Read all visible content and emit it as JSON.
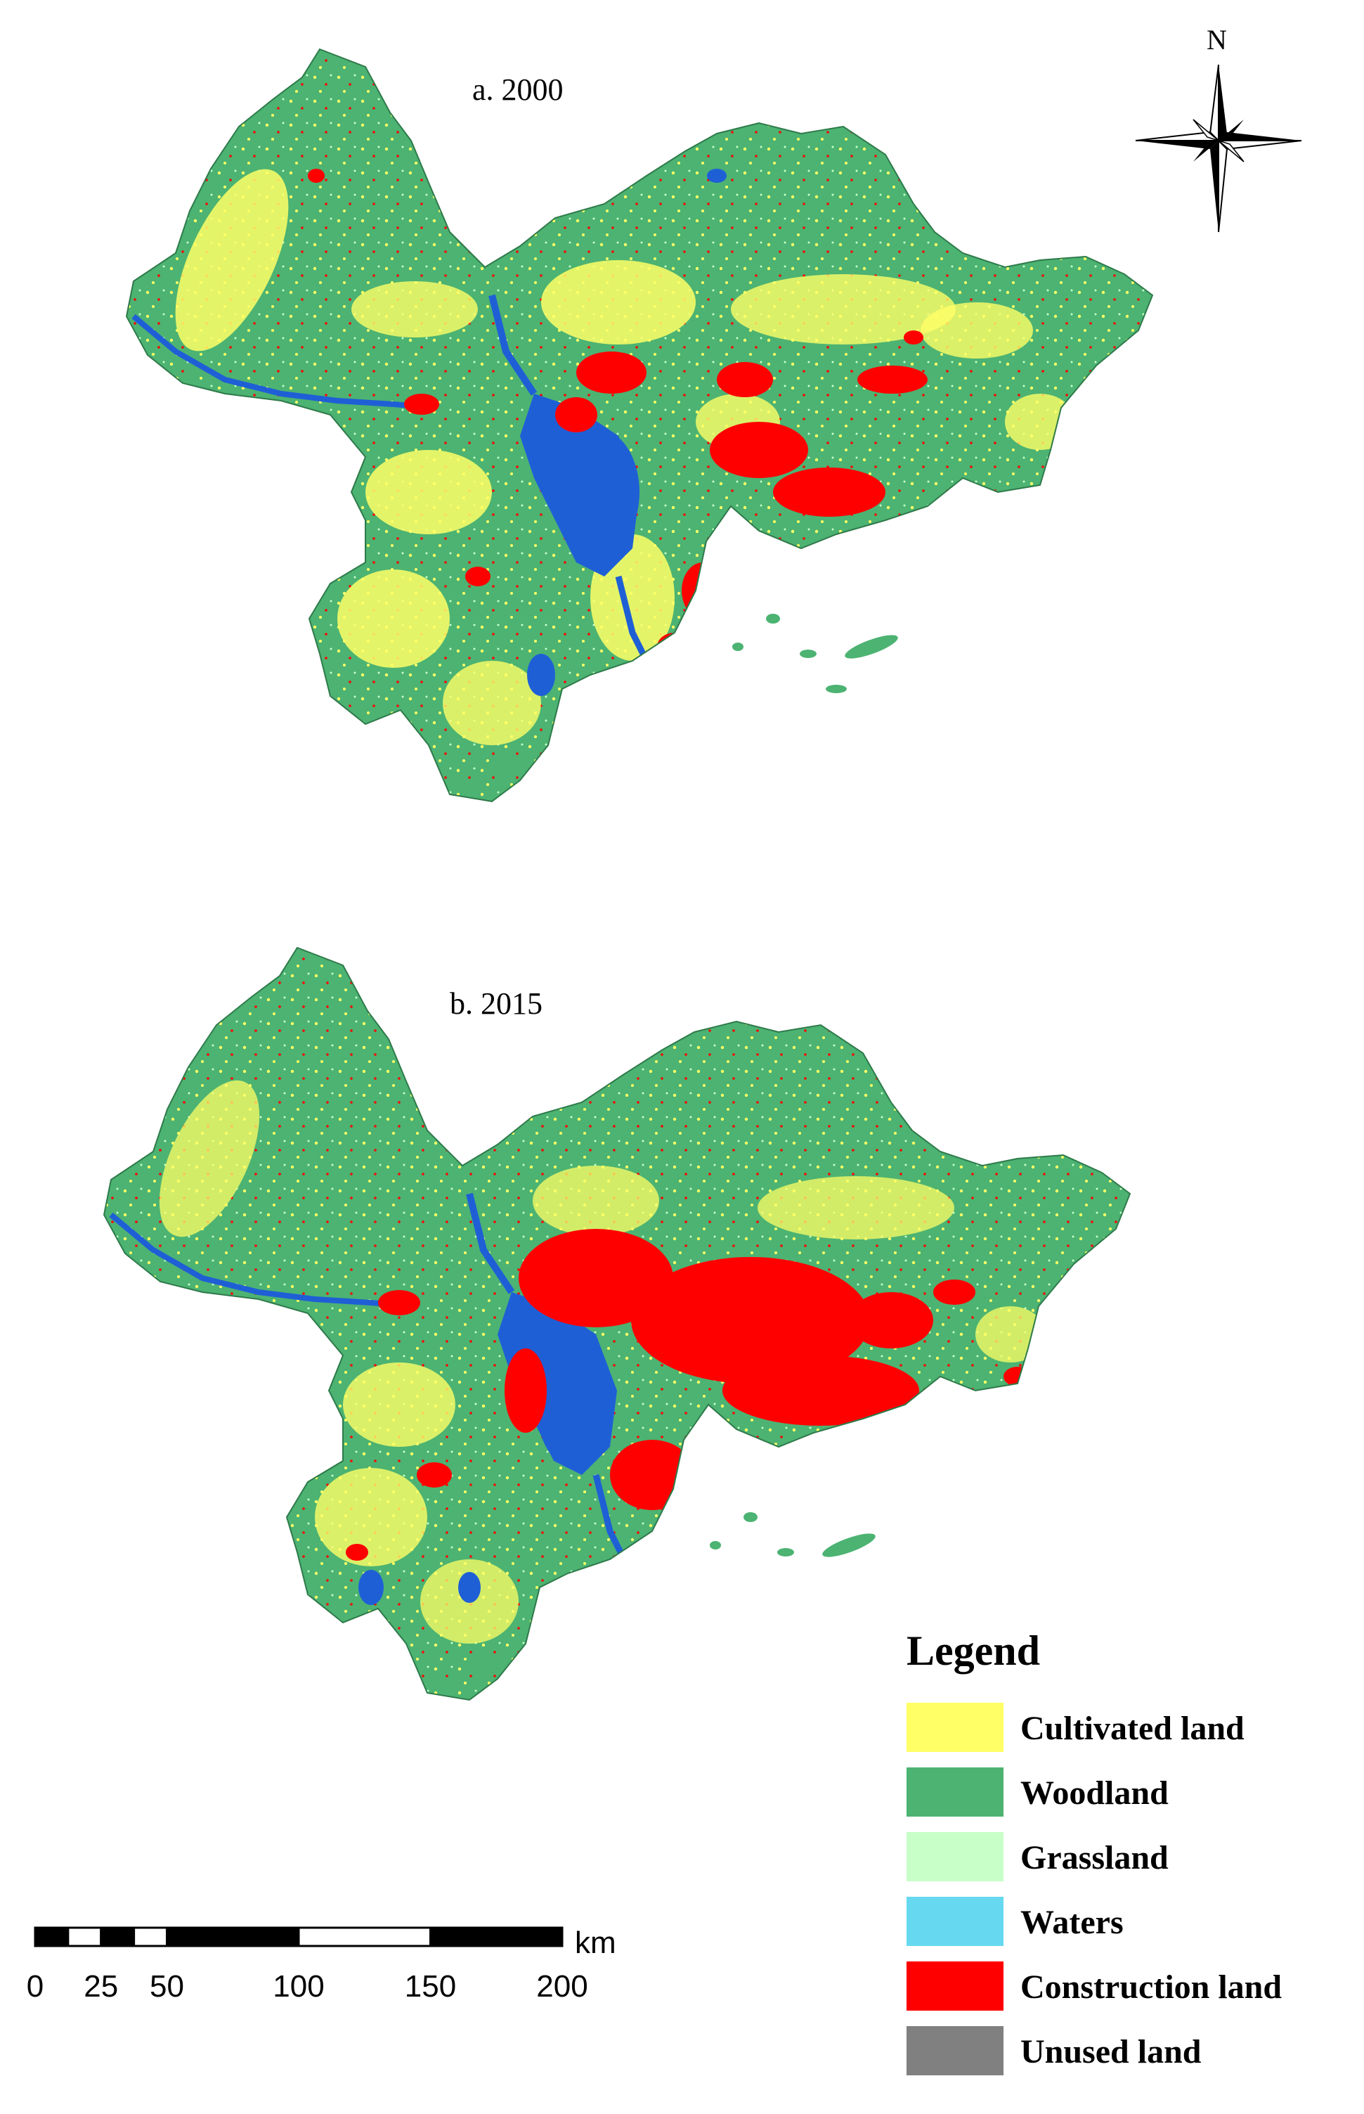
{
  "maps": [
    {
      "id": "a",
      "title": "a. 2000"
    },
    {
      "id": "b",
      "title": "b. 2015"
    }
  ],
  "north_arrow": {
    "label": "N"
  },
  "legend": {
    "title": "Legend",
    "items": [
      {
        "label": "Cultivated land",
        "color": "#ffff66"
      },
      {
        "label": "Woodland",
        "color": "#4cb372"
      },
      {
        "label": "Grassland",
        "color": "#c8ffc8"
      },
      {
        "label": "Waters",
        "color": "#66d9f0"
      },
      {
        "label": "Construction land",
        "color": "#ff0000"
      },
      {
        "label": "Unused land",
        "color": "#808080"
      }
    ]
  },
  "scale_bar": {
    "unit": "km",
    "ticks": [
      "0",
      "25",
      "50",
      "100",
      "150",
      "200"
    ]
  },
  "map_colors": {
    "woodland": "#4cb372",
    "cultivated": "#ffff66",
    "construction": "#ff0000",
    "water_body": "#1f5fd6"
  }
}
